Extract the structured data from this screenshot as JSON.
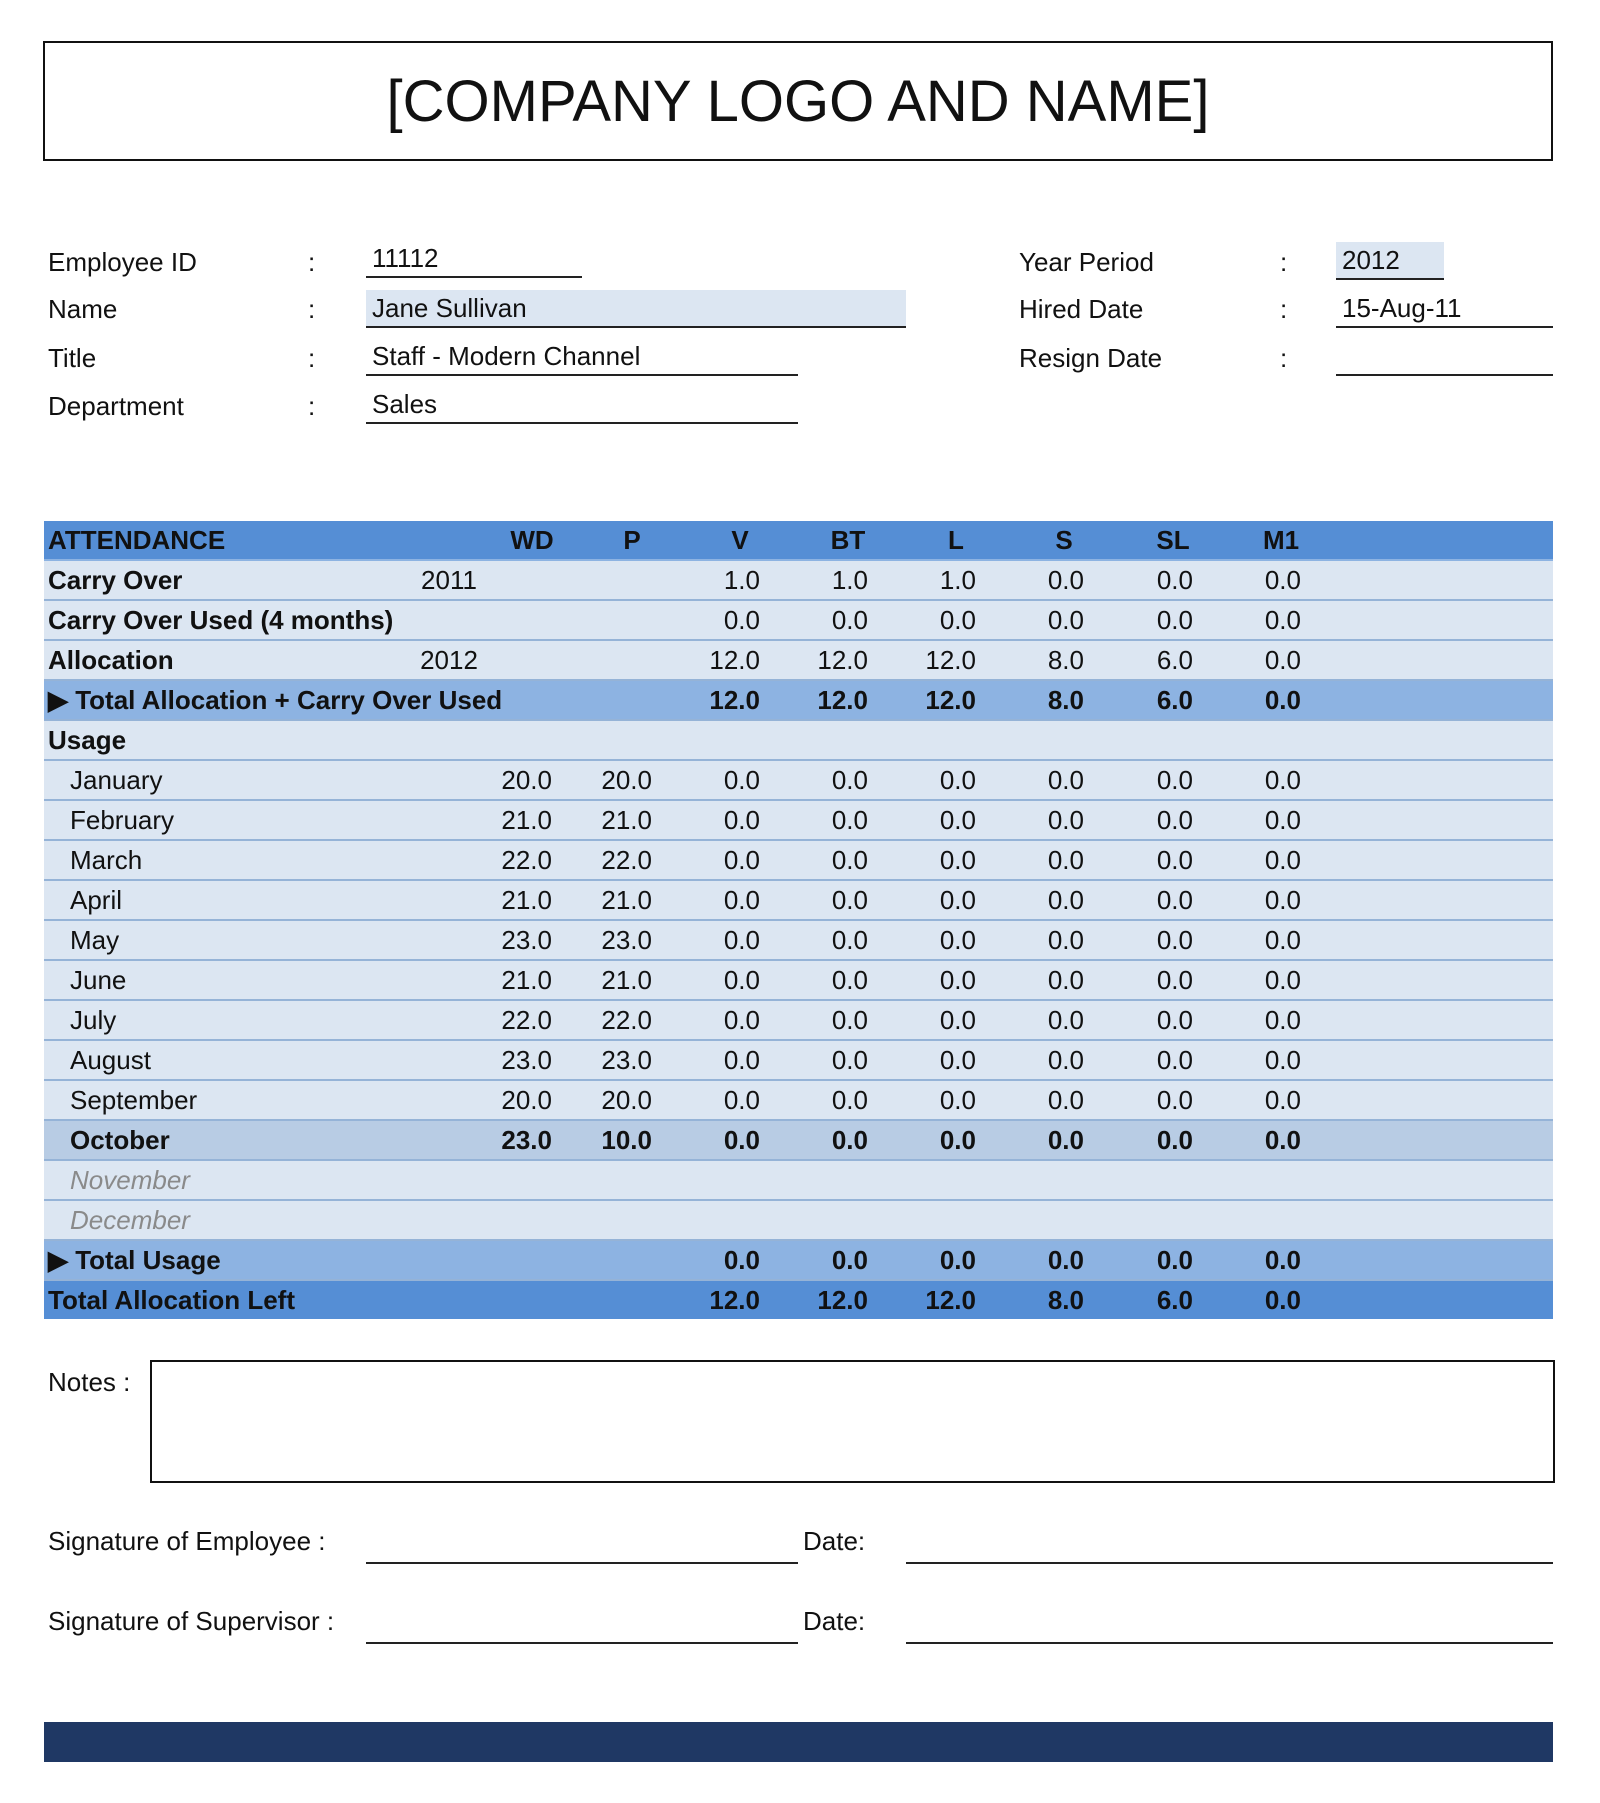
{
  "header": {
    "title": "[COMPANY LOGO AND NAME]"
  },
  "employee": {
    "id_label": "Employee ID",
    "id": "11112",
    "name_label": "Name",
    "name": "Jane Sullivan",
    "title_label": "Title",
    "title": "Staff - Modern Channel",
    "dept_label": "Department",
    "dept": "Sales",
    "year_label": "Year Period",
    "year": "2012",
    "hired_label": "Hired Date",
    "hired": "15-Aug-11",
    "resign_label": "Resign Date",
    "resign": "",
    "colon": ":"
  },
  "table": {
    "columns": [
      "WD",
      "P",
      "V",
      "BT",
      "L",
      "S",
      "SL",
      "M1"
    ],
    "header_label": "ATTENDANCE",
    "rows": [
      {
        "label": "Carry Over",
        "year": "2011",
        "style": "bold",
        "values": [
          "",
          "",
          "1.0",
          "1.0",
          "1.0",
          "0.0",
          "0.0",
          "0.0"
        ]
      },
      {
        "label": "Carry Over Used (4 months)",
        "year": "",
        "style": "bold",
        "values": [
          "",
          "",
          "0.0",
          "0.0",
          "0.0",
          "0.0",
          "0.0",
          "0.0"
        ]
      },
      {
        "label": "Allocation",
        "year": "2012",
        "style": "bold",
        "values": [
          "",
          "",
          "12.0",
          "12.0",
          "12.0",
          "8.0",
          "6.0",
          "0.0"
        ]
      },
      {
        "label": "▶ Total Allocation + Carry Over Used",
        "year": "",
        "style": "tot",
        "values": [
          "",
          "",
          "12.0",
          "12.0",
          "12.0",
          "8.0",
          "6.0",
          "0.0"
        ]
      },
      {
        "label": "Usage",
        "year": "",
        "style": "bold",
        "values": [
          "",
          "",
          "",
          "",
          "",
          "",
          "",
          ""
        ]
      },
      {
        "label": "January",
        "style": "month",
        "values": [
          "20.0",
          "20.0",
          "0.0",
          "0.0",
          "0.0",
          "0.0",
          "0.0",
          "0.0"
        ]
      },
      {
        "label": "February",
        "style": "month",
        "values": [
          "21.0",
          "21.0",
          "0.0",
          "0.0",
          "0.0",
          "0.0",
          "0.0",
          "0.0"
        ]
      },
      {
        "label": "March",
        "style": "month",
        "values": [
          "22.0",
          "22.0",
          "0.0",
          "0.0",
          "0.0",
          "0.0",
          "0.0",
          "0.0"
        ]
      },
      {
        "label": "April",
        "style": "month",
        "values": [
          "21.0",
          "21.0",
          "0.0",
          "0.0",
          "0.0",
          "0.0",
          "0.0",
          "0.0"
        ]
      },
      {
        "label": "May",
        "style": "month",
        "values": [
          "23.0",
          "23.0",
          "0.0",
          "0.0",
          "0.0",
          "0.0",
          "0.0",
          "0.0"
        ]
      },
      {
        "label": "June",
        "style": "month",
        "values": [
          "21.0",
          "21.0",
          "0.0",
          "0.0",
          "0.0",
          "0.0",
          "0.0",
          "0.0"
        ]
      },
      {
        "label": "July",
        "style": "month",
        "values": [
          "22.0",
          "22.0",
          "0.0",
          "0.0",
          "0.0",
          "0.0",
          "0.0",
          "0.0"
        ]
      },
      {
        "label": "August",
        "style": "month",
        "values": [
          "23.0",
          "23.0",
          "0.0",
          "0.0",
          "0.0",
          "0.0",
          "0.0",
          "0.0"
        ]
      },
      {
        "label": "September",
        "style": "month",
        "values": [
          "20.0",
          "20.0",
          "0.0",
          "0.0",
          "0.0",
          "0.0",
          "0.0",
          "0.0"
        ]
      },
      {
        "label": "October",
        "style": "cur",
        "values": [
          "23.0",
          "10.0",
          "0.0",
          "0.0",
          "0.0",
          "0.0",
          "0.0",
          "0.0"
        ]
      },
      {
        "label": "November",
        "style": "future",
        "values": [
          "",
          "",
          "",
          "",
          "",
          "",
          "",
          ""
        ]
      },
      {
        "label": "December",
        "style": "future",
        "values": [
          "",
          "",
          "",
          "",
          "",
          "",
          "",
          ""
        ]
      },
      {
        "label": "▶ Total Usage",
        "year": "",
        "style": "tot",
        "values": [
          "",
          "",
          "0.0",
          "0.0",
          "0.0",
          "0.0",
          "0.0",
          "0.0"
        ]
      },
      {
        "label": "Total Allocation Left",
        "year": "",
        "style": "left",
        "values": [
          "",
          "",
          "12.0",
          "12.0",
          "12.0",
          "8.0",
          "6.0",
          "0.0"
        ]
      }
    ]
  },
  "notes": {
    "label": "Notes :",
    "value": ""
  },
  "signatures": {
    "employee_label": "Signature of Employee :",
    "supervisor_label": "Signature of Supervisor :",
    "date_label": "Date:"
  },
  "colors": {
    "header": "#558ed5",
    "row": "#dce6f2",
    "total": "#8db3e2",
    "current": "#b8cce4",
    "footer": "#1f3864"
  }
}
